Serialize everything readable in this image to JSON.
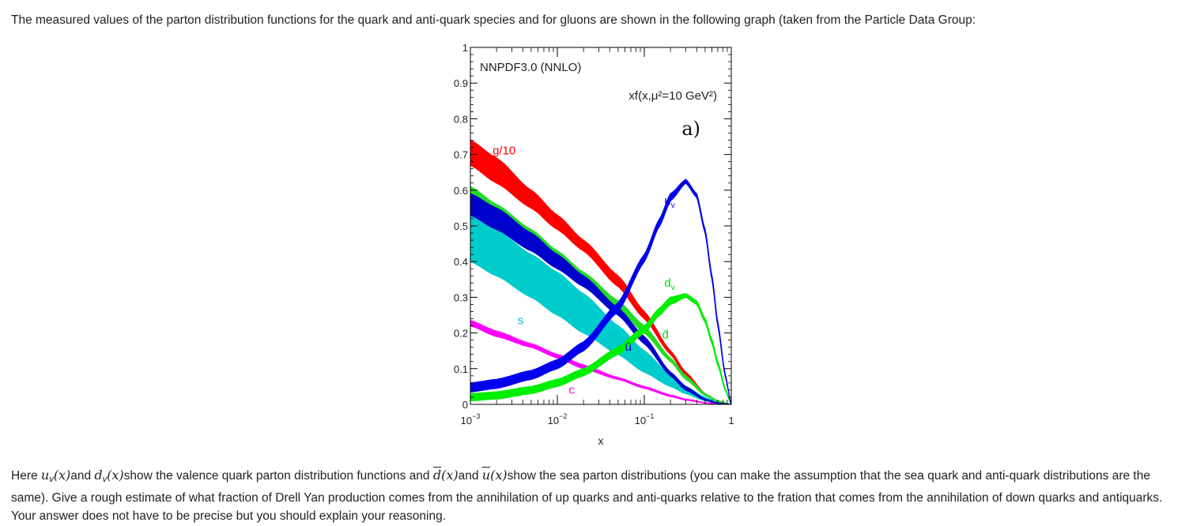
{
  "intro_text": "The measured values of the parton distribution functions for the quark and anti-quark species and for gluons are shown in the following graph (taken from the Particle Data Group:",
  "question": {
    "p1": "Here ",
    "m_u": "u",
    "m_v1": "v",
    "m_x1": "(x)",
    "p2": "and ",
    "m_d": "d",
    "m_v2": "v",
    "m_x2": "(x)",
    "p3": "show the valence quark parton distribution functions and ",
    "m_dbar": "d",
    "m_x3": "(x)",
    "p4": "and ",
    "m_ubar": "u",
    "m_x4": "(x)",
    "p5": "show the sea parton distributions (you can make the assumption that the sea quark and anti-quark distributions are the same). Give a rough estimate of what fraction of Drell Yan production comes from the annihilation of up quarks and anti-quarks relative to the fration that comes from the annihilation of down quarks and antiquarks. Your answer does not have to be precise but you should explain your reasoning."
  },
  "chart_data": {
    "type": "line",
    "title": "NNPDF3.0 (NNLO)",
    "subtitle": "xf(x,μ²=10 GeV²)",
    "panel_label": "a)",
    "xlabel": "x",
    "ylabel": "",
    "x_scale": "log",
    "xlim": [
      0.001,
      1
    ],
    "ylim": [
      0,
      1
    ],
    "x_ticks": [
      {
        "base": "10",
        "exp": "−3"
      },
      {
        "base": "10",
        "exp": "−2"
      },
      {
        "base": "10",
        "exp": "−1"
      },
      {
        "base": "1",
        "exp": ""
      }
    ],
    "y_ticks": [
      "0",
      "0.1",
      "0.2",
      "0.3",
      "0.4",
      "0.5",
      "0.6",
      "0.7",
      "0.8",
      "0.9",
      "1"
    ],
    "series": [
      {
        "name": "g/10",
        "color": "#ff0000",
        "label_color": "#ff0000",
        "x": [
          0.001,
          0.002,
          0.005,
          0.01,
          0.02,
          0.05,
          0.1,
          0.2,
          0.3,
          0.5,
          0.7,
          1.0
        ],
        "y_low": [
          0.67,
          0.62,
          0.55,
          0.49,
          0.43,
          0.33,
          0.24,
          0.14,
          0.08,
          0.03,
          0.01,
          0.0
        ],
        "y_high": [
          0.74,
          0.69,
          0.6,
          0.53,
          0.46,
          0.36,
          0.26,
          0.15,
          0.09,
          0.03,
          0.01,
          0.0
        ]
      },
      {
        "name": "u_v",
        "color": "#0000ee",
        "label_color": "#0000ee",
        "x": [
          0.001,
          0.002,
          0.005,
          0.01,
          0.02,
          0.05,
          0.1,
          0.15,
          0.2,
          0.3,
          0.4,
          0.5,
          0.6,
          0.7,
          0.85,
          1.0
        ],
        "y_low": [
          0.035,
          0.045,
          0.07,
          0.1,
          0.15,
          0.26,
          0.4,
          0.5,
          0.57,
          0.62,
          0.58,
          0.48,
          0.35,
          0.22,
          0.08,
          0.0
        ],
        "y_high": [
          0.06,
          0.07,
          0.095,
          0.125,
          0.175,
          0.285,
          0.42,
          0.52,
          0.59,
          0.63,
          0.59,
          0.49,
          0.36,
          0.23,
          0.085,
          0.0
        ]
      },
      {
        "name": "d_v",
        "color": "#00ee00",
        "label_color": "#00dd00",
        "x": [
          0.001,
          0.002,
          0.005,
          0.01,
          0.02,
          0.05,
          0.1,
          0.15,
          0.2,
          0.3,
          0.4,
          0.5,
          0.6,
          0.7,
          0.85,
          1.0
        ],
        "y_low": [
          0.01,
          0.015,
          0.03,
          0.05,
          0.08,
          0.14,
          0.2,
          0.25,
          0.28,
          0.3,
          0.28,
          0.23,
          0.17,
          0.11,
          0.04,
          0.0
        ],
        "y_high": [
          0.03,
          0.035,
          0.05,
          0.07,
          0.1,
          0.16,
          0.22,
          0.27,
          0.3,
          0.31,
          0.29,
          0.24,
          0.18,
          0.12,
          0.045,
          0.0
        ]
      },
      {
        "name": "d̄",
        "color": "#22dd22",
        "label_color": "#22cc22",
        "x": [
          0.001,
          0.002,
          0.005,
          0.01,
          0.02,
          0.05,
          0.1,
          0.2,
          0.3,
          0.5,
          0.7,
          1.0
        ],
        "y_low": [
          0.54,
          0.5,
          0.44,
          0.39,
          0.34,
          0.27,
          0.2,
          0.12,
          0.07,
          0.025,
          0.008,
          0.0
        ],
        "y_high": [
          0.61,
          0.56,
          0.49,
          0.43,
          0.37,
          0.29,
          0.22,
          0.13,
          0.08,
          0.03,
          0.01,
          0.0
        ]
      },
      {
        "name": "ū",
        "color": "#0000cc",
        "label_color": "#0000cc",
        "x": [
          0.001,
          0.002,
          0.005,
          0.01,
          0.02,
          0.05,
          0.1,
          0.2,
          0.3,
          0.5,
          0.7,
          1.0
        ],
        "y_low": [
          0.53,
          0.49,
          0.43,
          0.38,
          0.33,
          0.25,
          0.17,
          0.08,
          0.04,
          0.012,
          0.003,
          0.0
        ],
        "y_high": [
          0.59,
          0.55,
          0.48,
          0.42,
          0.36,
          0.27,
          0.19,
          0.09,
          0.05,
          0.015,
          0.004,
          0.0
        ]
      },
      {
        "name": "s",
        "color": "#00cccc",
        "label_color": "#00bbcc",
        "x": [
          0.001,
          0.002,
          0.005,
          0.01,
          0.02,
          0.05,
          0.1,
          0.2,
          0.3,
          0.5,
          0.7,
          1.0
        ],
        "y_low": [
          0.4,
          0.36,
          0.3,
          0.25,
          0.2,
          0.14,
          0.09,
          0.05,
          0.03,
          0.01,
          0.003,
          0.0
        ],
        "y_high": [
          0.55,
          0.49,
          0.42,
          0.37,
          0.31,
          0.22,
          0.15,
          0.08,
          0.05,
          0.02,
          0.006,
          0.0
        ]
      },
      {
        "name": "c",
        "color": "#ff00ff",
        "label_color": "#ff00ff",
        "x": [
          0.001,
          0.002,
          0.005,
          0.01,
          0.02,
          0.05,
          0.1,
          0.2,
          0.3,
          0.5,
          0.7,
          1.0
        ],
        "y_low": [
          0.22,
          0.19,
          0.16,
          0.13,
          0.1,
          0.07,
          0.045,
          0.022,
          0.012,
          0.004,
          0.001,
          0.0
        ],
        "y_high": [
          0.235,
          0.205,
          0.17,
          0.14,
          0.11,
          0.075,
          0.05,
          0.026,
          0.015,
          0.005,
          0.0015,
          0.0
        ]
      }
    ]
  }
}
